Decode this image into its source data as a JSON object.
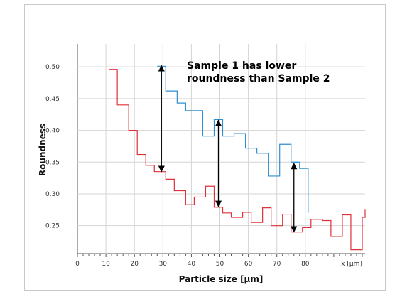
{
  "chart_data": {
    "type": "line",
    "step": true,
    "title": "",
    "annotation": [
      "Sample 1 has lower",
      "roundness than Sample 2"
    ],
    "xlabel": "Particle size [µm]",
    "ylabel": "Roundness",
    "x_unit_label": "x [µm]",
    "xlim": [
      0,
      101
    ],
    "ylim": [
      0.206,
      0.536
    ],
    "xticks": [
      0,
      10,
      20,
      30,
      40,
      50,
      60,
      70,
      80
    ],
    "yticks": [
      0.25,
      0.3,
      0.35,
      0.4,
      0.45,
      0.5
    ],
    "ytick_labels": [
      "0.25",
      "0.30",
      "0.35",
      "0.40",
      "0.45",
      "0.50"
    ],
    "grid": true,
    "series": [
      {
        "color": "#2f8fd0",
        "x": [
          28,
          31,
          35,
          38,
          44,
          48,
          51,
          55,
          59,
          63,
          67,
          71,
          75,
          78,
          81
        ],
        "y": [
          0.501,
          0.462,
          0.443,
          0.431,
          0.391,
          0.417,
          0.391,
          0.395,
          0.372,
          0.364,
          0.328,
          0.378,
          0.35,
          0.34,
          0.27
        ]
      },
      {
        "color": "#e0303a",
        "x": [
          11,
          14,
          18,
          21,
          24,
          27,
          31,
          34,
          38,
          41,
          45,
          48,
          51,
          54,
          58,
          61,
          65,
          68,
          72,
          75,
          79,
          82,
          86,
          89,
          93,
          96,
          100,
          101
        ],
        "y": [
          0.496,
          0.44,
          0.4,
          0.362,
          0.345,
          0.335,
          0.323,
          0.305,
          0.283,
          0.295,
          0.312,
          0.279,
          0.27,
          0.263,
          0.271,
          0.255,
          0.278,
          0.25,
          0.268,
          0.24,
          0.247,
          0.26,
          0.258,
          0.233,
          0.267,
          0.212,
          0.263,
          0.275
        ]
      }
    ],
    "arrows": [
      {
        "x": 29.5,
        "from": 0.502,
        "to": 0.335
      },
      {
        "x": 49.5,
        "from": 0.416,
        "to": 0.28
      },
      {
        "x": 76,
        "from": 0.348,
        "to": 0.24
      }
    ]
  },
  "colors": {
    "grid": "#d4d4d4",
    "axis": "#555555",
    "arrow": "#000000"
  }
}
